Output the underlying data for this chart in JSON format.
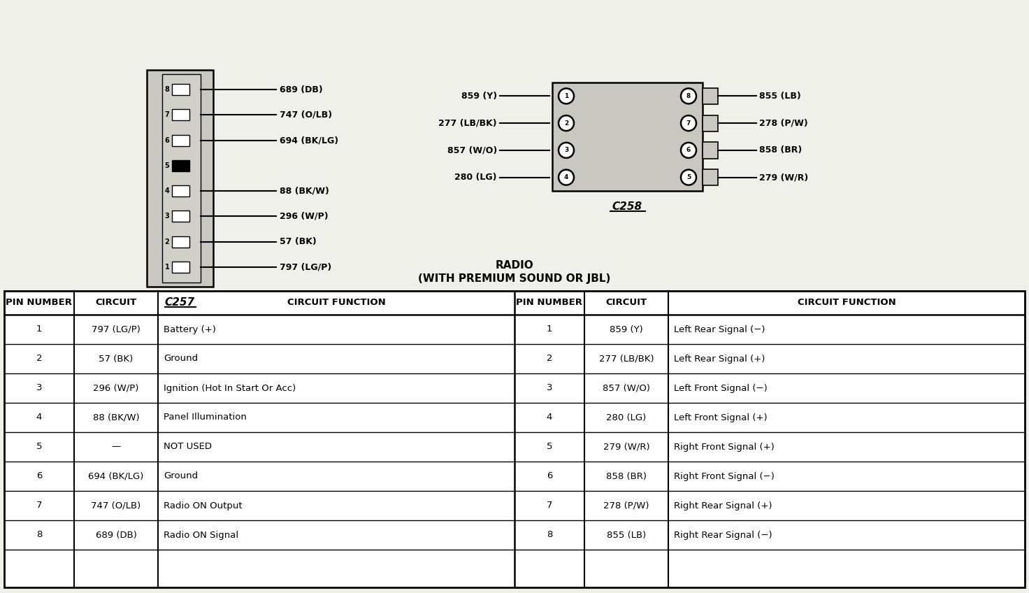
{
  "bg_color": "#f0f0eb",
  "c257_label": "C257",
  "c258_label": "C258",
  "c257_pins": [
    {
      "num": 8,
      "label": "689 (DB)",
      "filled": false
    },
    {
      "num": 7,
      "label": "747 (O/LB)",
      "filled": false
    },
    {
      "num": 6,
      "label": "694 (BK/LG)",
      "filled": false
    },
    {
      "num": 5,
      "label": "",
      "filled": true
    },
    {
      "num": 4,
      "label": "88 (BK/W)",
      "filled": false
    },
    {
      "num": 3,
      "label": "296 (W/P)",
      "filled": false
    },
    {
      "num": 2,
      "label": "57 (BK)",
      "filled": false
    },
    {
      "num": 1,
      "label": "797 (LG/P)",
      "filled": false
    }
  ],
  "c258_left_pins": [
    {
      "num": 1,
      "label": "859 (Y)"
    },
    {
      "num": 2,
      "label": "277 (LB/BK)"
    },
    {
      "num": 3,
      "label": "857 (W/O)"
    },
    {
      "num": 4,
      "label": "280 (LG)"
    }
  ],
  "c258_right_pins": [
    {
      "num": 8,
      "label": "855 (LB)"
    },
    {
      "num": 7,
      "label": "278 (P/W)"
    },
    {
      "num": 6,
      "label": "858 (BR)"
    },
    {
      "num": 5,
      "label": "279 (W/R)"
    }
  ],
  "table_headers_left": [
    "PIN NUMBER",
    "CIRCUIT",
    "CIRCUIT FUNCTION"
  ],
  "table_headers_right": [
    "PIN NUMBER",
    "CIRCUIT",
    "CIRCUIT FUNCTION"
  ],
  "table_rows_left": [
    [
      "1",
      "797 (LG/P)",
      "Battery (+)"
    ],
    [
      "2",
      "57 (BK)",
      "Ground"
    ],
    [
      "3",
      "296 (W/P)",
      "Ignition (Hot In Start Or Acc)"
    ],
    [
      "4",
      "88 (BK/W)",
      "Panel Illumination"
    ],
    [
      "5",
      "—",
      "NOT USED"
    ],
    [
      "6",
      "694 (BK/LG)",
      "Ground"
    ],
    [
      "7",
      "747 (O/LB)",
      "Radio ON Output"
    ],
    [
      "8",
      "689 (DB)",
      "Radio ON Signal"
    ]
  ],
  "table_rows_right": [
    [
      "1",
      "859 (Y)",
      "Left Rear Signal (−)"
    ],
    [
      "2",
      "277 (LB/BK)",
      "Left Rear Signal (+)"
    ],
    [
      "3",
      "857 (W/O)",
      "Left Front Signal (−)"
    ],
    [
      "4",
      "280 (LG)",
      "Left Front Signal (+)"
    ],
    [
      "5",
      "279 (W/R)",
      "Right Front Signal (+)"
    ],
    [
      "6",
      "858 (BR)",
      "Right Front Signal (−)"
    ],
    [
      "7",
      "278 (P/W)",
      "Right Rear Signal (+)"
    ],
    [
      "8",
      "855 (LB)",
      "Right Rear Signal (−)"
    ]
  ],
  "connector_fill": "#c8c8c0",
  "title_line1": "RADIO",
  "title_line2": "(WITH PREMIUM SOUND OR JBL)"
}
